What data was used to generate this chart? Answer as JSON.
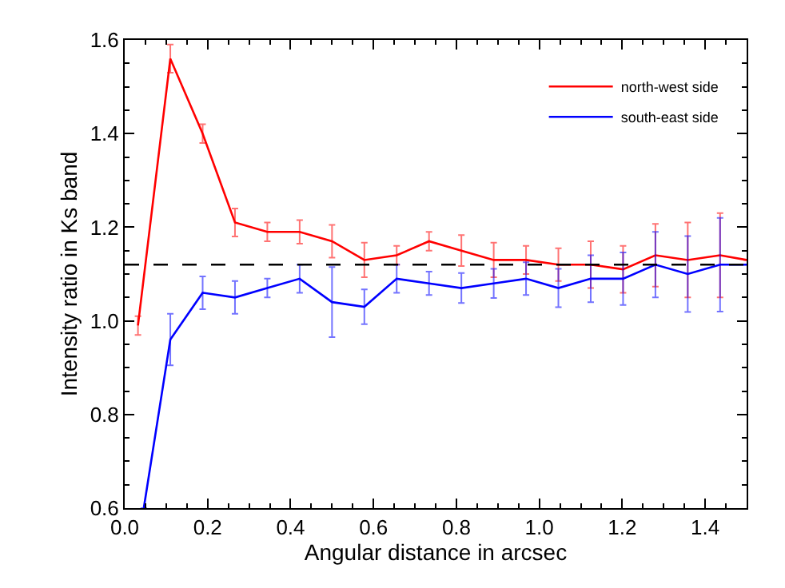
{
  "chart_data": {
    "type": "line",
    "xlabel": "Angular distance in arcsec",
    "ylabel": "Intensity ratio in Ks band",
    "x": [
      0.032,
      0.11,
      0.188,
      0.266,
      0.344,
      0.422,
      0.5,
      0.578,
      0.656,
      0.734,
      0.812,
      0.89,
      0.968,
      1.046,
      1.124,
      1.202,
      1.28,
      1.358,
      1.436,
      1.5
    ],
    "series": [
      {
        "name": "north-west side",
        "color": "#ff0000",
        "values": [
          0.99,
          1.56,
          1.4,
          1.21,
          1.19,
          1.19,
          1.17,
          1.13,
          1.14,
          1.17,
          1.15,
          1.13,
          1.13,
          1.12,
          1.12,
          1.11,
          1.14,
          1.13,
          1.14,
          1.13
        ],
        "errors": [
          0.02,
          0.03,
          0.02,
          0.03,
          0.02,
          0.025,
          0.035,
          0.037,
          0.02,
          0.02,
          0.033,
          0.037,
          0.03,
          0.035,
          0.05,
          0.05,
          0.067,
          0.08,
          0.09,
          null
        ]
      },
      {
        "name": "south-east side",
        "color": "#0000ff",
        "x": [
          0.046,
          0.11,
          0.188,
          0.266,
          0.344,
          0.422,
          0.5,
          0.578,
          0.656,
          0.734,
          0.812,
          0.89,
          0.968,
          1.046,
          1.124,
          1.202,
          1.28,
          1.358,
          1.436,
          1.5
        ],
        "values": [
          0.6,
          0.96,
          1.06,
          1.05,
          1.07,
          1.09,
          1.04,
          1.03,
          1.09,
          1.08,
          1.07,
          1.08,
          1.09,
          1.07,
          1.09,
          1.09,
          1.12,
          1.1,
          1.12,
          1.12
        ],
        "errors": [
          null,
          0.055,
          0.035,
          0.035,
          0.02,
          0.03,
          0.075,
          0.037,
          0.03,
          0.025,
          0.032,
          0.031,
          0.035,
          0.041,
          0.05,
          0.056,
          0.07,
          0.081,
          0.1,
          null
        ]
      }
    ],
    "xlim": [
      0,
      1.5
    ],
    "xticks": [
      {
        "value": 0,
        "label": "0.0"
      },
      0.2,
      0.4,
      0.6,
      0.8,
      {
        "value": 1,
        "label": "1.0"
      },
      1.2,
      1.4
    ],
    "ylim": [
      0.6,
      1.6
    ],
    "yticks": [
      0.6,
      0.8,
      {
        "value": 1,
        "label": "1.0"
      },
      1.2,
      1.4,
      1.6
    ],
    "ref_lines": [
      {
        "axis": "y",
        "value": 1.12,
        "color": "#000000",
        "line_style": "dashed"
      }
    ],
    "legend": "top right",
    "marker": "none",
    "line_style": "solid"
  }
}
